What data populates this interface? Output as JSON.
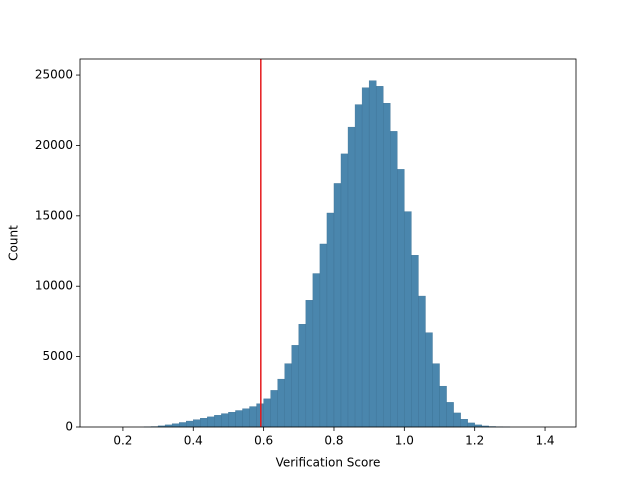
{
  "chart_data": {
    "type": "histogram",
    "xlabel": "Verification Score",
    "ylabel": "Count",
    "bins": [
      0.26,
      0.28,
      0.3,
      0.32,
      0.34,
      0.36,
      0.38,
      0.4,
      0.42,
      0.44,
      0.46,
      0.48,
      0.5,
      0.52,
      0.54,
      0.56,
      0.58,
      0.6,
      0.62,
      0.64,
      0.66,
      0.68,
      0.7,
      0.72,
      0.74,
      0.76,
      0.78,
      0.8,
      0.82,
      0.84,
      0.86,
      0.88,
      0.9,
      0.92,
      0.94,
      0.96,
      0.98,
      1.0,
      1.02,
      1.04,
      1.06,
      1.08,
      1.1,
      1.12,
      1.14,
      1.16,
      1.18,
      1.2,
      1.22,
      1.24,
      1.26,
      1.28,
      1.3
    ],
    "values": [
      10,
      30,
      80,
      150,
      230,
      320,
      420,
      520,
      620,
      720,
      830,
      950,
      1050,
      1170,
      1300,
      1450,
      1650,
      2000,
      2600,
      3400,
      4500,
      5800,
      7300,
      9000,
      10900,
      13000,
      15200,
      17300,
      19400,
      21300,
      22900,
      24100,
      24600,
      24200,
      23000,
      21000,
      18300,
      15300,
      12200,
      9300,
      6700,
      4500,
      2900,
      1750,
      1000,
      550,
      290,
      150,
      75,
      35,
      15,
      5
    ],
    "color": "#4a86ad",
    "threshold": 0.592,
    "threshold_color": "#e41a1c",
    "xlim": [
      0.078,
      1.488
    ],
    "ylim": [
      0,
      26140
    ],
    "xticks": [
      0.2,
      0.4,
      0.6,
      0.8,
      {
        "value": 1.0,
        "label": "1.0"
      },
      1.2,
      1.4
    ],
    "yticks": [
      0,
      5000,
      10000,
      15000,
      20000,
      25000
    ]
  }
}
